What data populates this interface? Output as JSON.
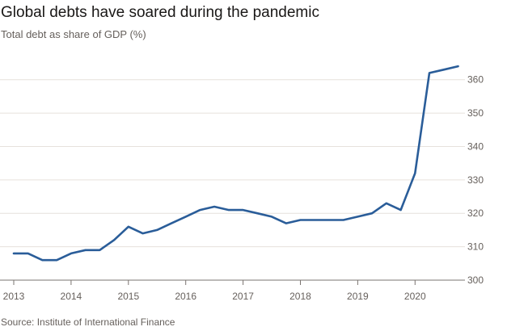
{
  "chart_data": {
    "type": "line",
    "title": "Global debts have soared during the pandemic",
    "subtitle": "Total debt as share of GDP (%)",
    "source": "Source: Institute of International Finance",
    "xlabel": "",
    "ylabel": "",
    "xlim": [
      2013,
      2020.8
    ],
    "ylim": [
      300,
      365
    ],
    "grid": true,
    "legend": "none",
    "x_ticks": [
      {
        "value": 2013,
        "label": "2013"
      },
      {
        "value": 2014,
        "label": "2014"
      },
      {
        "value": 2015,
        "label": "2015"
      },
      {
        "value": 2016,
        "label": "2016"
      },
      {
        "value": 2017,
        "label": "2017"
      },
      {
        "value": 2018,
        "label": "2018"
      },
      {
        "value": 2019,
        "label": "2019"
      },
      {
        "value": 2020,
        "label": "2020"
      }
    ],
    "y_ticks": [
      {
        "value": 300,
        "label": "300"
      },
      {
        "value": 310,
        "label": "310"
      },
      {
        "value": 320,
        "label": "320"
      },
      {
        "value": 330,
        "label": "330"
      },
      {
        "value": 340,
        "label": "340"
      },
      {
        "value": 350,
        "label": "350"
      },
      {
        "value": 360,
        "label": "360"
      }
    ],
    "series": [
      {
        "color": "#2a5d99",
        "points": [
          {
            "x": 2013.0,
            "y": 308
          },
          {
            "x": 2013.25,
            "y": 308
          },
          {
            "x": 2013.5,
            "y": 306
          },
          {
            "x": 2013.75,
            "y": 306
          },
          {
            "x": 2014.0,
            "y": 308
          },
          {
            "x": 2014.25,
            "y": 309
          },
          {
            "x": 2014.5,
            "y": 309
          },
          {
            "x": 2014.75,
            "y": 312
          },
          {
            "x": 2015.0,
            "y": 316
          },
          {
            "x": 2015.25,
            "y": 314
          },
          {
            "x": 2015.5,
            "y": 315
          },
          {
            "x": 2015.75,
            "y": 317
          },
          {
            "x": 2016.0,
            "y": 319
          },
          {
            "x": 2016.25,
            "y": 321
          },
          {
            "x": 2016.5,
            "y": 322
          },
          {
            "x": 2016.75,
            "y": 321
          },
          {
            "x": 2017.0,
            "y": 321
          },
          {
            "x": 2017.25,
            "y": 320
          },
          {
            "x": 2017.5,
            "y": 319
          },
          {
            "x": 2017.75,
            "y": 317
          },
          {
            "x": 2018.0,
            "y": 318
          },
          {
            "x": 2018.25,
            "y": 318
          },
          {
            "x": 2018.5,
            "y": 318
          },
          {
            "x": 2018.75,
            "y": 318
          },
          {
            "x": 2019.0,
            "y": 319
          },
          {
            "x": 2019.25,
            "y": 320
          },
          {
            "x": 2019.5,
            "y": 323
          },
          {
            "x": 2019.75,
            "y": 321
          },
          {
            "x": 2020.0,
            "y": 332
          },
          {
            "x": 2020.25,
            "y": 362
          },
          {
            "x": 2020.5,
            "y": 363
          },
          {
            "x": 2020.75,
            "y": 364
          }
        ]
      }
    ]
  }
}
